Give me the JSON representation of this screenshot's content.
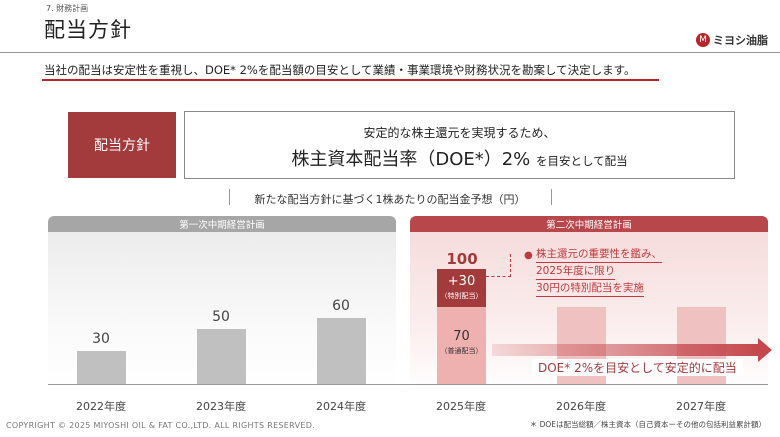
{
  "header": {
    "section": "7. 財務計画",
    "title": "配当方針",
    "logo_mark": "M",
    "logo_text": "ミヨシ油脂"
  },
  "lead": "当社の配当は安定性を重視し、DOE* 2%を配当額の目安として業績・事業環境や財務状況を勘案して決定します。",
  "policy": {
    "label": "配当方針",
    "line1": "安定的な株主還元を実現するため、",
    "line2_main": "株主資本配当率（DOE*）2% ",
    "line2_tail": "を目安として配当"
  },
  "chart_title": "新たな配当方針に基づく1株あたりの配当金予想（円）",
  "plans": {
    "first": "第一次中期経営計画",
    "second": "第二次中期経営計画"
  },
  "chart_data": {
    "type": "bar",
    "title": "新たな配当方針に基づく1株あたりの配当金予想（円）",
    "categories": [
      "2022年度",
      "2023年度",
      "2024年度",
      "2025年度",
      "2026年度",
      "2027年度"
    ],
    "value_labels": [
      "30",
      "50",
      "60",
      "100",
      "",
      ""
    ],
    "series": [
      {
        "name": "普通配当",
        "values": [
          30,
          50,
          60,
          70,
          null,
          null
        ]
      },
      {
        "name": "特別配当",
        "values": [
          null,
          null,
          null,
          30,
          null,
          null
        ]
      }
    ],
    "unlabeled_future_bars": [
      70,
      70
    ],
    "ylim": [
      0,
      110
    ]
  },
  "bar_2025": {
    "total": "100",
    "special_value": "+30",
    "special_label": "（特別配当）",
    "regular_value": "70",
    "regular_label": "（普通配当）"
  },
  "callout": {
    "bullet": "●",
    "lines": [
      "株主還元の重要性を鑑み、",
      "2025年度に限り",
      "30円の特別配当を実施"
    ]
  },
  "arrow_text": "DOE* 2%を目安として安定的に配当",
  "footer": {
    "copyright": "COPYRIGHT © 2025 MIYOSHI OIL & FAT CO.,LTD. ALL RIGHTS RESERVED.",
    "footnote": "＊ DOEは配当総額／株主資本（自己資本ーその他の包括利益累計額）"
  },
  "colors": {
    "accent": "#a33a3c",
    "plan1": "#a6a6a6",
    "plan2": "#b8474b",
    "bar_gray": "#c0c0c0",
    "bar_pink": "#efc1c1"
  }
}
